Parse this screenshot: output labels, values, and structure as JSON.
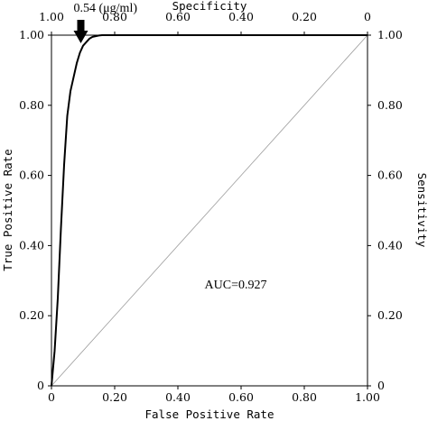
{
  "chart_data": {
    "type": "line",
    "title": "",
    "xlabel": "False Positive Rate",
    "ylabel": "True Positive Rate",
    "top_axis_label": "Specificity",
    "right_axis_label": "Sensitivity",
    "xlim": [
      0,
      1
    ],
    "ylim": [
      0,
      1
    ],
    "x_ticks": [
      "0",
      "0.20",
      "0.40",
      "0.60",
      "0.80",
      "1.00"
    ],
    "y_ticks": [
      "0",
      "0.20",
      "0.40",
      "0.60",
      "0.80",
      "1.00"
    ],
    "top_ticks": [
      "1.00",
      "0.80",
      "0.60",
      "0.40",
      "0.20",
      "0"
    ],
    "right_ticks": [
      "0",
      "0.20",
      "0.40",
      "0.60",
      "0.80",
      "1.00"
    ],
    "grid": false,
    "series": [
      {
        "name": "",
        "x": [
          0.0,
          0.01,
          0.02,
          0.03,
          0.04,
          0.05,
          0.06,
          0.07,
          0.08,
          0.09,
          0.1,
          0.11,
          0.12,
          0.13,
          0.14,
          0.15,
          0.16,
          0.17,
          0.18,
          0.2,
          1.0
        ],
        "y": [
          0.0,
          0.1,
          0.25,
          0.45,
          0.63,
          0.77,
          0.84,
          0.88,
          0.92,
          0.95,
          0.97,
          0.98,
          0.99,
          0.995,
          0.997,
          0.999,
          1.0,
          1.0,
          1.0,
          1.0,
          1.0
        ]
      }
    ],
    "reference_line": {
      "x": [
        0,
        1
      ],
      "y": [
        0,
        1
      ]
    },
    "annotations": [
      {
        "text": "0.54 (μg/ml)",
        "x": 0.07,
        "type": "arrow"
      },
      {
        "text": "AUC=0.927",
        "x": 0.58,
        "y": 0.29,
        "type": "text"
      }
    ]
  }
}
